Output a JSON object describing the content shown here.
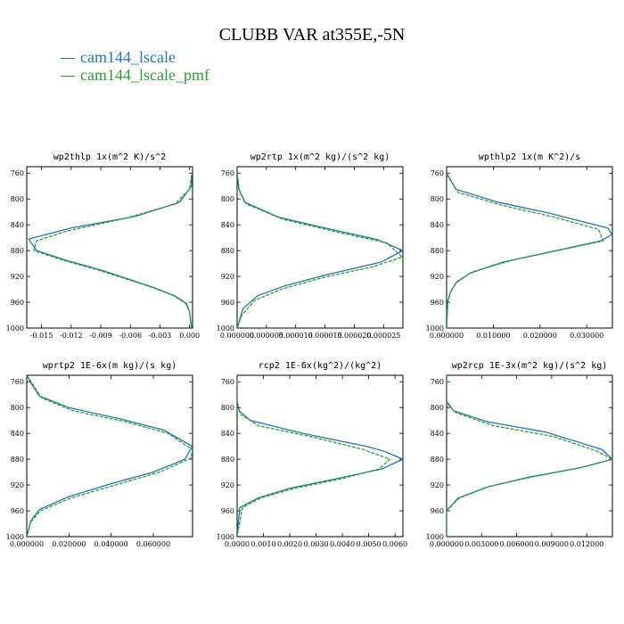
{
  "title": "CLUBB VAR at355E,-5N",
  "legend": [
    {
      "name": "cam144_lscale",
      "color": "#1f77b4"
    },
    {
      "name": "cam144_lscale_pmf",
      "color": "#2ca02c"
    }
  ],
  "chart_data": [
    {
      "type": "line",
      "title": "wp2thlp  1x(m^2 K)/s^2",
      "xlim": [
        -0.0165,
        0.0003
      ],
      "ylim": [
        1000,
        750
      ],
      "xticks": [
        -0.015,
        -0.012,
        -0.009,
        -0.006,
        -0.003,
        0.0
      ],
      "xticklabels": [
        "-0.015",
        "-0.012",
        "-0.009",
        "-0.006",
        "-0.003",
        "0.000"
      ],
      "yticks": [
        760,
        800,
        840,
        880,
        920,
        960,
        1000
      ],
      "series": [
        {
          "name": "cam144_lscale",
          "color": "#1f77b4",
          "dash": false,
          "points": [
            [
              0.0002,
              763
            ],
            [
              0.0002,
              780
            ],
            [
              -0.001,
              805
            ],
            [
              -0.0055,
              827
            ],
            [
              -0.012,
              845
            ],
            [
              -0.0163,
              862
            ],
            [
              -0.0155,
              880
            ],
            [
              -0.0125,
              895
            ],
            [
              -0.009,
              910
            ],
            [
              -0.006,
              925
            ],
            [
              -0.0035,
              938
            ],
            [
              -0.0015,
              950
            ],
            [
              -0.0003,
              962
            ],
            [
              0.0,
              975
            ],
            [
              0.0002,
              1000
            ]
          ]
        },
        {
          "name": "cam144_lscale_pmf",
          "color": "#2ca02c",
          "dash": true,
          "points": [
            [
              0.0002,
              763
            ],
            [
              0.0,
              785
            ],
            [
              -0.0015,
              808
            ],
            [
              -0.0065,
              830
            ],
            [
              -0.0125,
              850
            ],
            [
              -0.0155,
              865
            ],
            [
              -0.0158,
              880
            ],
            [
              -0.0128,
              895
            ],
            [
              -0.0093,
              910
            ],
            [
              -0.0062,
              925
            ],
            [
              -0.0036,
              938
            ],
            [
              -0.0016,
              950
            ],
            [
              -0.0004,
              962
            ],
            [
              0.0,
              975
            ],
            [
              0.0002,
              1000
            ]
          ]
        }
      ]
    },
    {
      "type": "line",
      "title": "wp2rtp  1x(m^2 kg)/(s^2 kg)",
      "xlim": [
        0,
        2.83e-05
      ],
      "ylim": [
        1000,
        750
      ],
      "xticks": [
        0,
        5e-06,
        1e-05,
        1.5e-05,
        2e-05,
        2.5e-05
      ],
      "xticklabels": [
        "0.000000",
        "0.000005",
        "0.000010",
        "0.000015",
        "0.000020",
        "0.000025"
      ],
      "yticks": [
        760,
        800,
        840,
        880,
        920,
        960,
        1000
      ],
      "series": [
        {
          "name": "cam144_lscale",
          "color": "#1f77b4",
          "dash": false,
          "points": [
            [
              0.0,
              760
            ],
            [
              3e-07,
              785
            ],
            [
              1.3e-06,
              805
            ],
            [
              7e-06,
              828
            ],
            [
              1.5e-05,
              845
            ],
            [
              2.4e-05,
              863
            ],
            [
              2.83e-05,
              880
            ],
            [
              2.45e-05,
              898
            ],
            [
              1.5e-05,
              918
            ],
            [
              8e-06,
              935
            ],
            [
              3.5e-06,
              950
            ],
            [
              1e-06,
              970
            ],
            [
              0.0,
              1000
            ]
          ]
        },
        {
          "name": "cam144_lscale_pmf",
          "color": "#2ca02c",
          "dash": true,
          "points": [
            [
              0.0,
              760
            ],
            [
              4e-07,
              788
            ],
            [
              1.6e-06,
              808
            ],
            [
              8e-06,
              832
            ],
            [
              1.65e-05,
              850
            ],
            [
              2.55e-05,
              868
            ],
            [
              2.82e-05,
              890
            ],
            [
              2.32e-05,
              905
            ],
            [
              1.45e-05,
              922
            ],
            [
              7.5e-06,
              940
            ],
            [
              3e-06,
              957
            ],
            [
              8e-07,
              980
            ],
            [
              0.0,
              1000
            ]
          ]
        }
      ]
    },
    {
      "type": "line",
      "title": "wpthlp2  1x(m K^2)/s",
      "xlim": [
        0,
        0.0355
      ],
      "ylim": [
        1000,
        750
      ],
      "xticks": [
        0,
        0.01,
        0.02,
        0.03
      ],
      "xticklabels": [
        "0.000000",
        "0.010000",
        "0.020000",
        "0.030000"
      ],
      "yticks": [
        760,
        800,
        840,
        880,
        920,
        960,
        1000
      ],
      "series": [
        {
          "name": "cam144_lscale",
          "color": "#1f77b4",
          "dash": false,
          "points": [
            [
              0.0,
              760
            ],
            [
              0.002,
              785
            ],
            [
              0.011,
              805
            ],
            [
              0.022,
              822
            ],
            [
              0.0345,
              845
            ],
            [
              0.0354,
              855
            ],
            [
              0.033,
              865
            ],
            [
              0.012,
              898
            ],
            [
              0.005,
              915
            ],
            [
              0.002,
              930
            ],
            [
              0.0008,
              945
            ],
            [
              0.0002,
              960
            ],
            [
              0.0,
              1000
            ]
          ]
        },
        {
          "name": "cam144_lscale_pmf",
          "color": "#2ca02c",
          "dash": true,
          "points": [
            [
              0.0,
              762
            ],
            [
              0.0025,
              790
            ],
            [
              0.012,
              810
            ],
            [
              0.023,
              828
            ],
            [
              0.0325,
              847
            ],
            [
              0.0335,
              865
            ],
            [
              0.014,
              895
            ],
            [
              0.0055,
              913
            ],
            [
              0.0022,
              928
            ],
            [
              0.0009,
              943
            ],
            [
              0.0003,
              958
            ],
            [
              0.0,
              1000
            ]
          ]
        }
      ]
    },
    {
      "type": "line",
      "title": "wprtp2  1E-6x(m kg)/(s kg)",
      "xlim": [
        0,
        7.86e-05
      ],
      "ylim": [
        1000,
        750
      ],
      "xticks": [
        0,
        2e-05,
        4e-05,
        6e-05
      ],
      "xticklabels": [
        "0.000000",
        "0.020000",
        "0.040000",
        "0.060000"
      ],
      "yticks": [
        760,
        800,
        840,
        880,
        920,
        960,
        1000
      ],
      "series": [
        {
          "name": "cam144_lscale",
          "color": "#1f77b4",
          "dash": false,
          "points": [
            [
              0.0,
              750
            ],
            [
              2e-06,
              762
            ],
            [
              6e-06,
              782
            ],
            [
              2e-05,
              800
            ],
            [
              4.5e-05,
              818
            ],
            [
              6.5e-05,
              835
            ],
            [
              7.85e-05,
              860
            ],
            [
              7.5e-05,
              880
            ],
            [
              6e-05,
              900
            ],
            [
              4e-05,
              918
            ],
            [
              2e-05,
              938
            ],
            [
              6e-06,
              958
            ],
            [
              2e-06,
              975
            ],
            [
              0.0,
              1000
            ]
          ]
        },
        {
          "name": "cam144_lscale_pmf",
          "color": "#2ca02c",
          "dash": true,
          "points": [
            [
              0.0,
              750
            ],
            [
              2.5e-06,
              762
            ],
            [
              7e-06,
              785
            ],
            [
              2.2e-05,
              805
            ],
            [
              4.7e-05,
              822
            ],
            [
              6.7e-05,
              840
            ],
            [
              7.85e-05,
              865
            ],
            [
              7.8e-05,
              878
            ],
            [
              6.3e-05,
              900
            ],
            [
              4.2e-05,
              920
            ],
            [
              2.1e-05,
              940
            ],
            [
              6.5e-06,
              960
            ],
            [
              2e-06,
              977
            ],
            [
              0.0,
              1000
            ]
          ]
        }
      ]
    },
    {
      "type": "line",
      "title": "rcp2  1E-6x(kg^2)/(kg^2)",
      "xlim": [
        0,
        6.3e-09
      ],
      "ylim": [
        1000,
        750
      ],
      "xticks": [
        0,
        1e-09,
        2e-09,
        3e-09,
        4e-09,
        5e-09,
        6e-09
      ],
      "xticklabels": [
        "0.0000",
        "0.0010",
        "0.0020",
        "0.0030",
        "0.0040",
        "0.0050",
        "0.0060"
      ],
      "yticks": [
        760,
        800,
        840,
        880,
        920,
        960,
        1000
      ],
      "series": [
        {
          "name": "cam144_lscale",
          "color": "#1f77b4",
          "dash": false,
          "points": [
            [
              0.0,
              750
            ],
            [
              0.0,
              790
            ],
            [
              8e-11,
              805
            ],
            [
              5e-10,
              820
            ],
            [
              2.5e-09,
              840
            ],
            [
              4.9e-09,
              860
            ],
            [
              5.6e-09,
              868
            ],
            [
              6.3e-09,
              880
            ],
            [
              5.5e-09,
              895
            ],
            [
              3.8e-09,
              910
            ],
            [
              2e-09,
              925
            ],
            [
              8e-10,
              940
            ],
            [
              1e-10,
              955
            ],
            [
              0.0,
              1000
            ]
          ]
        },
        {
          "name": "cam144_lscale_pmf",
          "color": "#2ca02c",
          "dash": true,
          "points": [
            [
              0.0,
              750
            ],
            [
              0.0,
              795
            ],
            [
              1.2e-10,
              810
            ],
            [
              8e-10,
              828
            ],
            [
              2.8e-09,
              845
            ],
            [
              4.8e-09,
              865
            ],
            [
              5.8e-09,
              880
            ],
            [
              5.4e-09,
              895
            ],
            [
              4e-09,
              910
            ],
            [
              2.2e-09,
              925
            ],
            [
              9e-10,
              940
            ],
            [
              2e-10,
              955
            ],
            [
              0.0,
              1000
            ]
          ]
        }
      ]
    },
    {
      "type": "line",
      "title": "wp2rcp  1E-3x(m^2 kg)/(s^2 kg)",
      "xlim": [
        0,
        1.42e-05
      ],
      "ylim": [
        1000,
        750
      ],
      "xticks": [
        0,
        3e-06,
        6e-06,
        9e-06,
        1.2e-05
      ],
      "xticklabels": [
        "0.000000",
        "0.003000",
        "0.006000",
        "0.009000",
        "0.012000"
      ],
      "yticks": [
        760,
        800,
        840,
        880,
        920,
        960,
        1000
      ],
      "series": [
        {
          "name": "cam144_lscale",
          "color": "#1f77b4",
          "dash": false,
          "points": [
            [
              0.0,
              750
            ],
            [
              0.0,
              790
            ],
            [
              6e-07,
              805
            ],
            [
              3.5e-06,
              822
            ],
            [
              8.5e-06,
              838
            ],
            [
              1.33e-05,
              865
            ],
            [
              1.42e-05,
              880
            ],
            [
              1.15e-05,
              893
            ],
            [
              7e-06,
              908
            ],
            [
              3.5e-06,
              923
            ],
            [
              1e-06,
              940
            ],
            [
              0.0,
              960
            ],
            [
              0.0,
              1000
            ]
          ]
        },
        {
          "name": "cam144_lscale_pmf",
          "color": "#2ca02c",
          "dash": true,
          "points": [
            [
              0.0,
              750
            ],
            [
              0.0,
              793
            ],
            [
              8e-07,
              808
            ],
            [
              4e-06,
              828
            ],
            [
              9.2e-06,
              845
            ],
            [
              1.28e-05,
              867
            ],
            [
              1.42e-05,
              880
            ],
            [
              1.18e-05,
              892
            ],
            [
              7.2e-06,
              908
            ],
            [
              3.7e-06,
              922
            ],
            [
              1.1e-06,
              940
            ],
            [
              0.0,
              960
            ],
            [
              0.0,
              1000
            ]
          ]
        }
      ]
    }
  ]
}
